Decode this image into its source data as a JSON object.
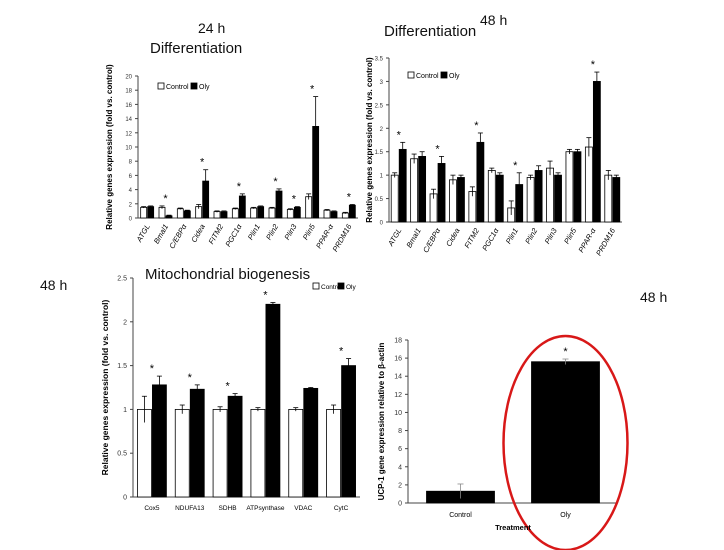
{
  "labels": {
    "tl_time": "24 h",
    "tr_time": "48 h",
    "bl_time": "48 h",
    "br_time": "48 h"
  },
  "chart_data": [
    {
      "id": "diff24",
      "type": "bar",
      "title": "Differentiation",
      "ylabel": "Relative genes expression (fold vs. control)",
      "ylim": [
        0,
        20
      ],
      "yticks": [
        0,
        2,
        4,
        6,
        8,
        10,
        12,
        14,
        16,
        18,
        20
      ],
      "legend": [
        "Control",
        "Oly"
      ],
      "legend_position": "top-left",
      "categories": [
        "ATGL",
        "Bmal1",
        "C/EBPα",
        "Cidea",
        "FITM2",
        "PGC1α",
        "Plin1",
        "Plin2",
        "Plin3",
        "Plin5",
        "PPAR-α",
        "PRDM16"
      ],
      "series": [
        {
          "name": "Control",
          "values": [
            1.5,
            1.5,
            1.3,
            1.6,
            0.9,
            1.3,
            1.4,
            1.4,
            1.2,
            3.0,
            1.1,
            0.7
          ]
        },
        {
          "name": "Oly",
          "values": [
            1.6,
            0.3,
            1.0,
            5.2,
            0.9,
            3.1,
            1.6,
            3.8,
            1.5,
            12.9,
            0.9,
            1.8
          ]
        }
      ],
      "errors": [
        [
          0.1,
          0.2,
          0.1,
          0.3,
          0.1,
          0.1,
          0.1,
          0.1,
          0.1,
          0.4,
          0.1,
          0.1
        ],
        [
          0.1,
          0.1,
          0.1,
          1.6,
          0.1,
          0.3,
          0.1,
          0.3,
          0.1,
          4.2,
          0.1,
          0.1
        ]
      ],
      "significant": [
        false,
        true,
        false,
        true,
        false,
        true,
        false,
        true,
        true,
        true,
        false,
        true
      ]
    },
    {
      "id": "diff48",
      "type": "bar",
      "title": "Differentiation",
      "ylabel": "Relative  genes expression (fold vs. control)",
      "ylim": [
        0,
        3.5
      ],
      "yticks": [
        "0",
        "0.5",
        "1",
        "1.5",
        "2",
        "2.5",
        "3",
        "3.5"
      ],
      "legend": [
        "Control",
        "Oly"
      ],
      "legend_position": "top-left",
      "categories": [
        "ATGL",
        "Bmal1",
        "C/EBPα",
        "Cidea",
        "FITM2",
        "PGC1α",
        "Plin1",
        "Plin2",
        "Plin3",
        "Plin5",
        "PPAR-α",
        "PRDM16"
      ],
      "series": [
        {
          "name": "Control",
          "values": [
            1.0,
            1.35,
            0.6,
            0.9,
            0.65,
            1.1,
            0.3,
            0.95,
            1.15,
            1.5,
            1.6,
            1.0
          ]
        },
        {
          "name": "Oly",
          "values": [
            1.55,
            1.4,
            1.25,
            0.95,
            1.7,
            1.0,
            0.8,
            1.1,
            1.0,
            1.5,
            3.0,
            0.95
          ]
        }
      ],
      "errors": [
        [
          0.05,
          0.1,
          0.1,
          0.1,
          0.1,
          0.05,
          0.15,
          0.05,
          0.15,
          0.05,
          0.2,
          0.1
        ],
        [
          0.15,
          0.1,
          0.15,
          0.05,
          0.2,
          0.05,
          0.25,
          0.1,
          0.05,
          0.05,
          0.2,
          0.05
        ]
      ],
      "significant": [
        true,
        false,
        true,
        false,
        true,
        false,
        true,
        false,
        false,
        false,
        true,
        false
      ]
    },
    {
      "id": "mito48",
      "type": "bar",
      "title": "Mitochondrial biogenesis",
      "ylabel": "Relative  genes expression (fold vs. control)",
      "ylim": [
        0,
        2.5
      ],
      "yticks": [
        "0",
        "0.5",
        "1",
        "1.5",
        "2",
        "2.5"
      ],
      "legend": [
        "Control",
        "Oly"
      ],
      "legend_position": "top-right",
      "categories": [
        "Cox5",
        "NDUFA13",
        "SDHB",
        "ATPsynthase",
        "VDAC",
        "CytC"
      ],
      "series": [
        {
          "name": "Control",
          "values": [
            1.0,
            1.0,
            1.0,
            1.0,
            1.0,
            1.0
          ]
        },
        {
          "name": "Oly",
          "values": [
            1.28,
            1.23,
            1.15,
            2.2,
            1.24,
            1.5
          ]
        }
      ],
      "errors": [
        [
          0.15,
          0.05,
          0.03,
          0.02,
          0.02,
          0.05
        ],
        [
          0.1,
          0.05,
          0.03,
          0.02,
          0.01,
          0.08
        ]
      ],
      "significant": [
        true,
        true,
        true,
        true,
        false,
        true
      ]
    },
    {
      "id": "ucp1",
      "type": "bar",
      "title": "",
      "ylabel": "UCP-1 gene expression relative to β-actin",
      "xlabel": "Treatment",
      "ylim": [
        0,
        18
      ],
      "yticks": [
        0,
        2,
        4,
        6,
        8,
        10,
        12,
        14,
        16,
        18
      ],
      "categories": [
        "Control",
        "Oly"
      ],
      "values": [
        1.3,
        15.6
      ],
      "errors": [
        0.8,
        0.3
      ],
      "significant": [
        false,
        true
      ],
      "highlight": "Oly"
    }
  ]
}
